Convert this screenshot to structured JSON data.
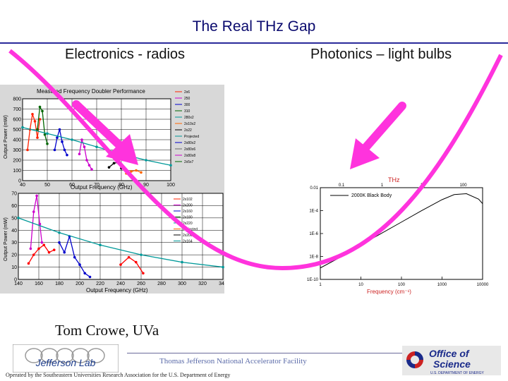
{
  "slide": {
    "title": "The Real THz Gap",
    "left_label": "Electronics - radios",
    "right_label": "Photonics – light bulbs",
    "author": "Tom Crowe, UVa",
    "facility": "Thomas Jefferson National Accelerator Facility",
    "operated_by": "Operated by the Southeastern Universities Research Association for the U.S. Department of Energy",
    "jlab_logo_text": "Jefferson Lab",
    "doe_logo_line1": "Office of",
    "doe_logo_line2": "Science",
    "doe_logo_line3": "U.S. DEPARTMENT OF ENERGY",
    "colors": {
      "title": "#0a0a6e",
      "arrow": "#ff33dd",
      "rule": "#2a2a9a",
      "doe_red": "#cc2222",
      "doe_blue": "#1a2a8a"
    }
  },
  "chart_data": [
    {
      "type": "scatter",
      "title": "Measured Frequency Doubler Performance",
      "xlabel": "Output Frequency (GHz)",
      "ylabel": "Output Power (mW)",
      "x_ticks": [
        "40",
        "50",
        "60",
        "70",
        "80",
        "90",
        "100"
      ],
      "y_ticks": [
        "0",
        "100",
        "200",
        "300",
        "400",
        "500",
        "600",
        "700",
        "800"
      ],
      "xlim": [
        40,
        100
      ],
      "ylim": [
        0,
        800
      ],
      "legend_entries": [
        "2x6",
        "250",
        "300",
        "310",
        "280x2",
        "2x10x2",
        "2x22",
        "Projected",
        "2x80x2",
        "2x80x6",
        "2x80x8",
        "2x5x7"
      ],
      "legend_placement": "right",
      "series": [
        {
          "color": "#ff2200",
          "points": [
            [
              42,
              300
            ],
            [
              43,
              500
            ],
            [
              44,
              650
            ],
            [
              45,
              580
            ],
            [
              46,
              420
            ],
            [
              47,
              600
            ]
          ]
        },
        {
          "color": "#006600",
          "points": [
            [
              46,
              500
            ],
            [
              47,
              720
            ],
            [
              48,
              680
            ],
            [
              49,
              450
            ],
            [
              50,
              360
            ]
          ]
        },
        {
          "color": "#0000cc",
          "points": [
            [
              53,
              300
            ],
            [
              54,
              420
            ],
            [
              55,
              500
            ],
            [
              56,
              380
            ],
            [
              57,
              300
            ],
            [
              58,
              250
            ]
          ]
        },
        {
          "color": "#cc00cc",
          "points": [
            [
              63,
              260
            ],
            [
              64,
              400
            ],
            [
              65,
              330
            ],
            [
              66,
              200
            ],
            [
              67,
              150
            ],
            [
              68,
              110
            ]
          ]
        },
        {
          "color": "#000000",
          "points": [
            [
              75,
              130
            ],
            [
              77,
              170
            ],
            [
              79,
              180
            ],
            [
              80,
              120
            ]
          ]
        },
        {
          "color": "#ff6600",
          "points": [
            [
              82,
              70
            ],
            [
              84,
              90
            ],
            [
              86,
              100
            ],
            [
              88,
              80
            ]
          ]
        },
        {
          "color": "#009999",
          "points": [
            [
              40,
              520
            ],
            [
              50,
              460
            ],
            [
              60,
              400
            ],
            [
              70,
              330
            ],
            [
              80,
              260
            ],
            [
              90,
              200
            ],
            [
              100,
              150
            ]
          ]
        }
      ]
    },
    {
      "type": "scatter",
      "xlabel": "Output Frequency (GHz)",
      "ylabel": "Output Power (mW)",
      "x_ticks": [
        "140",
        "160",
        "180",
        "200",
        "220",
        "240",
        "260",
        "280",
        "300",
        "320",
        "340"
      ],
      "y_ticks": [
        "0",
        "10",
        "20",
        "30",
        "40",
        "50",
        "60",
        "70"
      ],
      "xlim": [
        140,
        340
      ],
      "ylim": [
        0,
        70
      ],
      "legend_entries": [
        "2x102",
        "2x200",
        "2x160",
        "2x180",
        "2x220",
        "Projected",
        "2x200",
        "2x164"
      ],
      "legend_placement": "right",
      "series": [
        {
          "color": "#cc00cc",
          "points": [
            [
              152,
              25
            ],
            [
              155,
              55
            ],
            [
              158,
              68
            ],
            [
              161,
              45
            ],
            [
              163,
              30
            ]
          ]
        },
        {
          "color": "#ff0000",
          "points": [
            [
              150,
              13
            ],
            [
              155,
              20
            ],
            [
              160,
              25
            ],
            [
              165,
              28
            ],
            [
              170,
              22
            ],
            [
              175,
              24
            ]
          ]
        },
        {
          "color": "#0000cc",
          "points": [
            [
              180,
              30
            ],
            [
              185,
              22
            ],
            [
              190,
              35
            ],
            [
              195,
              18
            ],
            [
              200,
              12
            ],
            [
              205,
              5
            ],
            [
              210,
              2
            ]
          ]
        },
        {
          "color": "#ff0000",
          "points": [
            [
              240,
              12
            ],
            [
              248,
              18
            ],
            [
              255,
              14
            ],
            [
              262,
              5
            ]
          ]
        },
        {
          "color": "#009999",
          "points": [
            [
              140,
              50
            ],
            [
              180,
              38
            ],
            [
              220,
              28
            ],
            [
              260,
              20
            ],
            [
              300,
              14
            ],
            [
              340,
              10
            ]
          ]
        }
      ]
    },
    {
      "type": "line",
      "title": "THz",
      "xlabel": "Frequency (cm⁻¹)",
      "ylabel": "",
      "x_ticks": [
        "1",
        "10",
        "100",
        "1000",
        "10000"
      ],
      "x_top_ticks": [
        "0.1",
        "1",
        "10",
        "100"
      ],
      "y_ticks": [
        "0.01",
        "1E-4",
        "1E-6",
        "1E-8",
        "1E-10"
      ],
      "x_scale": "log",
      "y_scale": "log",
      "legend_entries": [
        "2000K Black Body"
      ],
      "legend_placement": "top",
      "series": [
        {
          "name": "2000K Black Body",
          "color": "#000000",
          "x": [
            1,
            3,
            10,
            30,
            100,
            300,
            1000,
            2000,
            4000,
            8000,
            10000
          ],
          "y": [
            1e-09,
            8e-09,
            1e-07,
            9e-07,
            1e-05,
            9e-05,
            0.0009,
            0.0025,
            0.003,
            0.001,
            0.0004
          ]
        }
      ]
    }
  ]
}
